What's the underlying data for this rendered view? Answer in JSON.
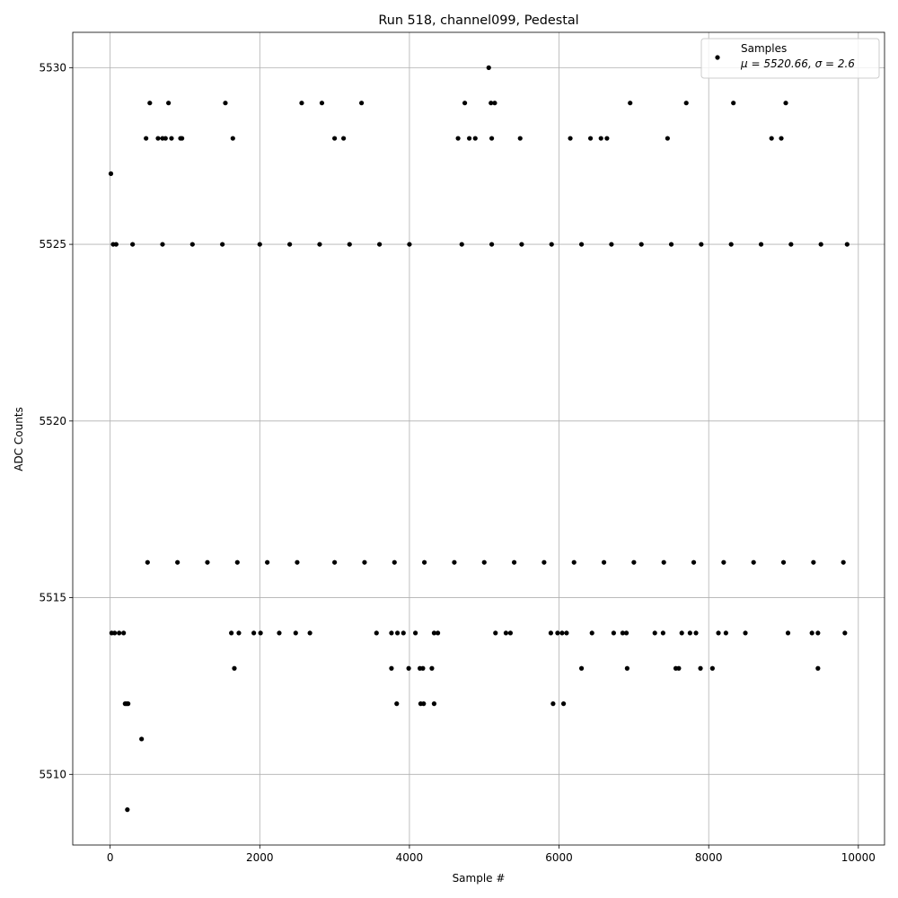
{
  "chart_data": {
    "type": "scatter",
    "title": "Run 518, channel099, Pedestal",
    "xlabel": "Sample #",
    "ylabel": "ADC Counts",
    "xlim": [
      -500,
      10350
    ],
    "ylim": [
      5508,
      5531
    ],
    "xticks": [
      0,
      2000,
      4000,
      6000,
      8000,
      10000
    ],
    "xtick_labels": [
      "0",
      "2000",
      "4000",
      "6000",
      "8000",
      "10000"
    ],
    "yticks": [
      5510,
      5515,
      5520,
      5525,
      5530
    ],
    "ytick_labels": [
      "5510",
      "5515",
      "5520",
      "5525",
      "5530"
    ],
    "grid": true,
    "legend_position": "top-right",
    "series": [
      {
        "name": "Samples",
        "name_math": "μ = 5520.66, σ = 2.6",
        "color": "#000000",
        "marker": "circle",
        "points": [
          [
            10,
            5527
          ],
          [
            230,
            5509
          ],
          [
            420,
            5511
          ],
          [
            40,
            5525
          ],
          [
            80,
            5525
          ],
          [
            200,
            5512
          ],
          [
            220,
            5512
          ],
          [
            240,
            5512
          ],
          [
            480,
            5528
          ],
          [
            530,
            5529
          ],
          [
            780,
            5529
          ],
          [
            640,
            5528
          ],
          [
            700,
            5528
          ],
          [
            740,
            5528
          ],
          [
            820,
            5528
          ],
          [
            940,
            5528
          ],
          [
            960,
            5528
          ],
          [
            1540,
            5529
          ],
          [
            1640,
            5528
          ],
          [
            2560,
            5529
          ],
          [
            2830,
            5529
          ],
          [
            3000,
            5528
          ],
          [
            3120,
            5528
          ],
          [
            3360,
            5529
          ],
          [
            4740,
            5529
          ],
          [
            4880,
            5528
          ],
          [
            4650,
            5528
          ],
          [
            4800,
            5528
          ],
          [
            5060,
            5530
          ],
          [
            5090,
            5529
          ],
          [
            5140,
            5529
          ],
          [
            5100,
            5528
          ],
          [
            5480,
            5528
          ],
          [
            6150,
            5528
          ],
          [
            6420,
            5528
          ],
          [
            6560,
            5528
          ],
          [
            6640,
            5528
          ],
          [
            6950,
            5529
          ],
          [
            7450,
            5528
          ],
          [
            7700,
            5529
          ],
          [
            8330,
            5529
          ],
          [
            8840,
            5528
          ],
          [
            8970,
            5528
          ],
          [
            9030,
            5529
          ],
          [
            1660,
            5513
          ],
          [
            3760,
            5513
          ],
          [
            3990,
            5513
          ],
          [
            4140,
            5513
          ],
          [
            4180,
            5513
          ],
          [
            4300,
            5513
          ],
          [
            3830,
            5512
          ],
          [
            4150,
            5512
          ],
          [
            4190,
            5512
          ],
          [
            4330,
            5512
          ],
          [
            5920,
            5512
          ],
          [
            6060,
            5512
          ],
          [
            6300,
            5513
          ],
          [
            6910,
            5513
          ],
          [
            7560,
            5513
          ],
          [
            7600,
            5513
          ],
          [
            7890,
            5513
          ],
          [
            8050,
            5513
          ],
          [
            9460,
            5513
          ],
          [
            20,
            5514
          ],
          [
            60,
            5514
          ],
          [
            120,
            5514
          ],
          [
            180,
            5514
          ],
          [
            1620,
            5514
          ],
          [
            1720,
            5514
          ],
          [
            1920,
            5514
          ],
          [
            2010,
            5514
          ],
          [
            2260,
            5514
          ],
          [
            2480,
            5514
          ],
          [
            2670,
            5514
          ],
          [
            3560,
            5514
          ],
          [
            3760,
            5514
          ],
          [
            3840,
            5514
          ],
          [
            3920,
            5514
          ],
          [
            4080,
            5514
          ],
          [
            4330,
            5514
          ],
          [
            4380,
            5514
          ],
          [
            5150,
            5514
          ],
          [
            5290,
            5514
          ],
          [
            5350,
            5514
          ],
          [
            5890,
            5514
          ],
          [
            5980,
            5514
          ],
          [
            6040,
            5514
          ],
          [
            6100,
            5514
          ],
          [
            6440,
            5514
          ],
          [
            6730,
            5514
          ],
          [
            6850,
            5514
          ],
          [
            6900,
            5514
          ],
          [
            7280,
            5514
          ],
          [
            7390,
            5514
          ],
          [
            7640,
            5514
          ],
          [
            7750,
            5514
          ],
          [
            7830,
            5514
          ],
          [
            8130,
            5514
          ],
          [
            8230,
            5514
          ],
          [
            8490,
            5514
          ],
          [
            9060,
            5514
          ],
          [
            9380,
            5514
          ],
          [
            9460,
            5514
          ],
          [
            9820,
            5514
          ],
          [
            500,
            5516
          ],
          [
            900,
            5516
          ],
          [
            1300,
            5516
          ],
          [
            1700,
            5516
          ],
          [
            2100,
            5516
          ],
          [
            2500,
            5516
          ],
          [
            3000,
            5516
          ],
          [
            3400,
            5516
          ],
          [
            3800,
            5516
          ],
          [
            4200,
            5516
          ],
          [
            4600,
            5516
          ],
          [
            5000,
            5516
          ],
          [
            5400,
            5516
          ],
          [
            5800,
            5516
          ],
          [
            6200,
            5516
          ],
          [
            6600,
            5516
          ],
          [
            7000,
            5516
          ],
          [
            7400,
            5516
          ],
          [
            7800,
            5516
          ],
          [
            8200,
            5516
          ],
          [
            8600,
            5516
          ],
          [
            9000,
            5516
          ],
          [
            9400,
            5516
          ],
          [
            9800,
            5516
          ],
          [
            300,
            5525
          ],
          [
            700,
            5525
          ],
          [
            1100,
            5525
          ],
          [
            1500,
            5525
          ],
          [
            2000,
            5525
          ],
          [
            2400,
            5525
          ],
          [
            2800,
            5525
          ],
          [
            3200,
            5525
          ],
          [
            3600,
            5525
          ],
          [
            4000,
            5525
          ],
          [
            4700,
            5525
          ],
          [
            5100,
            5525
          ],
          [
            5500,
            5525
          ],
          [
            5900,
            5525
          ],
          [
            6300,
            5525
          ],
          [
            6700,
            5525
          ],
          [
            7100,
            5525
          ],
          [
            7500,
            5525
          ],
          [
            7900,
            5525
          ],
          [
            8300,
            5525
          ],
          [
            8700,
            5525
          ],
          [
            9100,
            5525
          ],
          [
            9500,
            5525
          ],
          [
            9850,
            5525
          ]
        ]
      }
    ]
  }
}
